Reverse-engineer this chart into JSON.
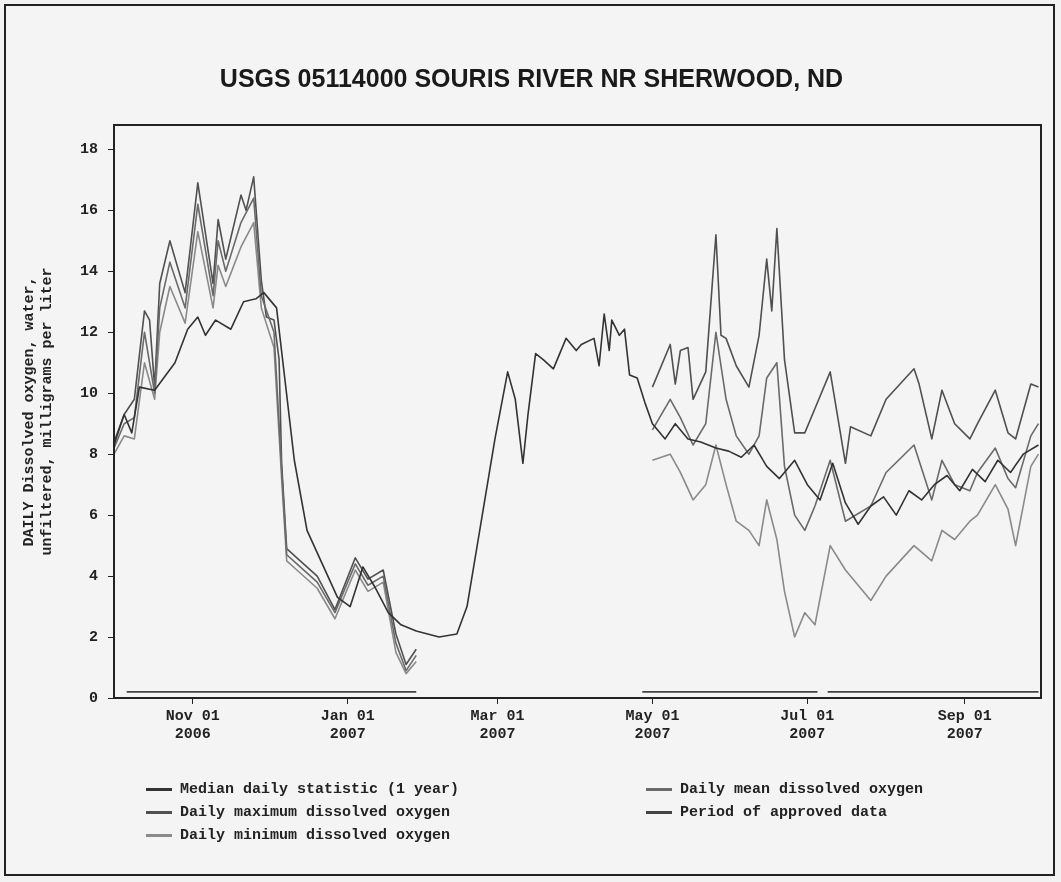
{
  "chart_data": {
    "type": "line",
    "title": "USGS 05114000 SOURIS RIVER NR SHERWOOD, ND",
    "ylabel": "DAILY Dissolved oxygen, water,\nunfiltered, milligrams per liter",
    "xlim": [
      "2006-10-01",
      "2007-10-01"
    ],
    "xticks": [
      {
        "value": "2006-11-01",
        "label": "Nov 01\n2006"
      },
      {
        "value": "2007-01-01",
        "label": "Jan 01\n2007"
      },
      {
        "value": "2007-03-01",
        "label": "Mar 01\n2007"
      },
      {
        "value": "2007-05-01",
        "label": "May 01\n2007"
      },
      {
        "value": "2007-07-01",
        "label": "Jul 01\n2007"
      },
      {
        "value": "2007-09-01",
        "label": "Sep 01\n2007"
      }
    ],
    "ylim": [
      0,
      18.8
    ],
    "yticks": [
      0,
      2,
      4,
      6,
      8,
      10,
      12,
      14,
      16,
      18
    ],
    "grid": false,
    "legend": "bottom",
    "marker": "none",
    "line_style": "solid",
    "series": [
      {
        "name": "Median daily statistic (1 year)",
        "color": "#333333",
        "x": [
          "2006-10-01",
          "2006-10-05",
          "2006-10-08",
          "2006-10-11",
          "2006-10-17",
          "2006-10-25",
          "2006-10-30",
          "2006-11-03",
          "2006-11-06",
          "2006-11-10",
          "2006-11-16",
          "2006-11-21",
          "2006-11-26",
          "2006-11-29",
          "2006-12-04",
          "2006-12-11",
          "2006-12-16",
          "2006-12-22",
          "2006-12-28",
          "2007-01-02",
          "2007-01-07",
          "2007-01-12",
          "2007-01-17",
          "2007-01-22",
          "2007-01-28",
          "2007-02-06",
          "2007-02-13",
          "2007-02-17",
          "2007-02-21",
          "2007-02-26",
          "2007-02-28",
          "2007-03-05",
          "2007-03-08",
          "2007-03-11",
          "2007-03-13",
          "2007-03-16",
          "2007-03-19",
          "2007-03-23",
          "2007-03-28",
          "2007-04-01",
          "2007-04-03",
          "2007-04-08",
          "2007-04-10",
          "2007-04-12",
          "2007-04-14",
          "2007-04-15",
          "2007-04-18",
          "2007-04-20",
          "2007-04-22",
          "2007-04-25",
          "2007-04-28",
          "2007-05-01",
          "2007-05-06",
          "2007-05-10",
          "2007-05-15",
          "2007-05-20",
          "2007-05-26",
          "2007-05-31",
          "2007-06-05",
          "2007-06-10",
          "2007-06-15",
          "2007-06-20",
          "2007-06-26",
          "2007-07-01",
          "2007-07-06",
          "2007-07-11",
          "2007-07-16",
          "2007-07-21",
          "2007-07-26",
          "2007-07-31",
          "2007-08-05",
          "2007-08-10",
          "2007-08-15",
          "2007-08-20",
          "2007-08-25",
          "2007-08-30",
          "2007-09-04",
          "2007-09-09",
          "2007-09-14",
          "2007-09-19",
          "2007-09-24",
          "2007-09-30"
        ],
        "values": [
          8.3,
          9.3,
          8.7,
          10.2,
          10.1,
          11.0,
          12.1,
          12.5,
          11.9,
          12.4,
          12.1,
          13.0,
          13.1,
          13.3,
          12.8,
          7.8,
          5.5,
          4.4,
          3.3,
          3.0,
          4.3,
          3.6,
          2.8,
          2.4,
          2.2,
          2.0,
          2.1,
          3.0,
          5.0,
          7.5,
          8.5,
          10.7,
          9.8,
          7.7,
          9.3,
          11.3,
          11.1,
          10.8,
          11.8,
          11.4,
          11.6,
          11.8,
          10.9,
          12.6,
          11.4,
          12.4,
          11.9,
          12.1,
          10.6,
          10.5,
          9.7,
          9.0,
          8.5,
          9.0,
          8.5,
          8.4,
          8.2,
          8.1,
          7.9,
          8.3,
          7.6,
          7.2,
          7.8,
          7.0,
          6.5,
          7.7,
          6.4,
          5.7,
          6.3,
          6.6,
          6.0,
          6.8,
          6.5,
          7.0,
          7.3,
          6.8,
          7.5,
          7.1,
          7.8,
          7.4,
          8.0,
          8.3
        ]
      },
      {
        "name": "Daily mean dissolved oxygen",
        "color": "#6a6a6a",
        "x": [
          "2006-10-01",
          "2006-10-05",
          "2006-10-09",
          "2006-10-13",
          "2006-10-17",
          "2006-10-19",
          "2006-10-23",
          "2006-10-29",
          "2006-11-03",
          "2006-11-09",
          "2006-11-11",
          "2006-11-14",
          "2006-11-20",
          "2006-11-25",
          "2006-11-28",
          "2006-12-03",
          "2006-12-06",
          "2006-12-08",
          "2006-12-12",
          "2006-12-20",
          "2006-12-27",
          "2007-01-04",
          "2007-01-09",
          "2007-01-15",
          "2007-01-20",
          "2007-01-24",
          "2007-01-28",
          "2007-03-01",
          "2007-05-01",
          "2007-05-08",
          "2007-05-12",
          "2007-05-17",
          "2007-05-22",
          "2007-05-26",
          "2007-05-30",
          "2007-06-03",
          "2007-06-08",
          "2007-06-12",
          "2007-06-15",
          "2007-06-19",
          "2007-06-22",
          "2007-06-26",
          "2007-06-30",
          "2007-07-04",
          "2007-07-10",
          "2007-07-16",
          "2007-07-26",
          "2007-08-01",
          "2007-08-12",
          "2007-08-19",
          "2007-08-23",
          "2007-08-28",
          "2007-09-03",
          "2007-09-06",
          "2007-09-13",
          "2007-09-18",
          "2007-09-21",
          "2007-09-27",
          "2007-09-30"
        ],
        "values": [
          8.2,
          9.0,
          9.2,
          12.0,
          10.0,
          12.8,
          14.3,
          12.8,
          16.2,
          13.2,
          15.0,
          14.0,
          15.6,
          16.4,
          13.2,
          12.0,
          7.5,
          4.7,
          4.4,
          3.8,
          2.8,
          4.4,
          3.7,
          4.0,
          1.8,
          0.9,
          1.4,
          null,
          8.8,
          9.8,
          9.2,
          8.3,
          9.0,
          12.0,
          9.8,
          8.6,
          8.0,
          8.6,
          10.5,
          11.0,
          7.6,
          6.0,
          5.5,
          6.3,
          7.8,
          5.8,
          6.3,
          7.4,
          8.3,
          6.5,
          7.8,
          7.0,
          6.8,
          7.4,
          8.2,
          7.2,
          6.9,
          8.6,
          9.0
        ]
      },
      {
        "name": "Daily maximum dissolved oxygen",
        "color": "#505050",
        "x": [
          "2006-10-01",
          "2006-10-05",
          "2006-10-09",
          "2006-10-13",
          "2006-10-15",
          "2006-10-17",
          "2006-10-19",
          "2006-10-23",
          "2006-10-29",
          "2006-11-03",
          "2006-11-09",
          "2006-11-11",
          "2006-11-14",
          "2006-11-20",
          "2006-11-22",
          "2006-11-25",
          "2006-11-28",
          "2006-11-30",
          "2006-12-03",
          "2006-12-05",
          "2006-12-06",
          "2006-12-08",
          "2006-12-12",
          "2006-12-20",
          "2006-12-27",
          "2007-01-04",
          "2007-01-09",
          "2007-01-15",
          "2007-01-20",
          "2007-01-24",
          "2007-01-28",
          "2007-03-01",
          "2007-05-01",
          "2007-05-08",
          "2007-05-10",
          "2007-05-12",
          "2007-05-15",
          "2007-05-17",
          "2007-05-22",
          "2007-05-26",
          "2007-05-28",
          "2007-05-30",
          "2007-06-03",
          "2007-06-08",
          "2007-06-12",
          "2007-06-15",
          "2007-06-17",
          "2007-06-19",
          "2007-06-22",
          "2007-06-26",
          "2007-06-30",
          "2007-07-04",
          "2007-07-10",
          "2007-07-16",
          "2007-07-18",
          "2007-07-26",
          "2007-08-01",
          "2007-08-12",
          "2007-08-14",
          "2007-08-19",
          "2007-08-23",
          "2007-08-28",
          "2007-09-03",
          "2007-09-06",
          "2007-09-13",
          "2007-09-18",
          "2007-09-21",
          "2007-09-27",
          "2007-09-30"
        ],
        "values": [
          8.4,
          9.3,
          9.8,
          12.7,
          12.4,
          10.2,
          13.6,
          15.0,
          13.3,
          16.9,
          13.6,
          15.7,
          14.4,
          16.5,
          16.0,
          17.1,
          13.7,
          12.5,
          12.4,
          11.1,
          7.7,
          4.9,
          4.6,
          4.0,
          2.9,
          4.6,
          3.9,
          4.2,
          2.1,
          1.1,
          1.6,
          null,
          10.2,
          11.6,
          10.3,
          11.4,
          11.5,
          9.8,
          10.7,
          15.2,
          11.9,
          11.8,
          10.9,
          10.2,
          11.9,
          14.4,
          12.7,
          15.4,
          11.1,
          8.7,
          8.7,
          9.5,
          10.7,
          7.7,
          8.9,
          8.6,
          9.8,
          10.8,
          10.3,
          8.5,
          10.1,
          9.0,
          8.5,
          9.0,
          10.1,
          8.7,
          8.5,
          10.3,
          10.2
        ]
      },
      {
        "name": "Period of approved data",
        "color": "#444444",
        "x": [
          "2006-10-06",
          "2007-01-28",
          "2007-03-01",
          "2007-04-27",
          "2007-07-05",
          "2007-07-07",
          "2007-07-09",
          "2007-09-30"
        ],
        "values": [
          0.2,
          0.2,
          null,
          0.2,
          0.2,
          null,
          0.2,
          0.2
        ]
      },
      {
        "name": "Daily minimum dissolved oxygen",
        "color": "#8a8a8a",
        "x": [
          "2006-10-01",
          "2006-10-05",
          "2006-10-09",
          "2006-10-13",
          "2006-10-17",
          "2006-10-19",
          "2006-10-23",
          "2006-10-29",
          "2006-11-03",
          "2006-11-09",
          "2006-11-11",
          "2006-11-14",
          "2006-11-20",
          "2006-11-25",
          "2006-11-28",
          "2006-12-03",
          "2006-12-06",
          "2006-12-08",
          "2006-12-12",
          "2006-12-20",
          "2006-12-27",
          "2007-01-04",
          "2007-01-09",
          "2007-01-15",
          "2007-01-20",
          "2007-01-24",
          "2007-01-28",
          "2007-03-01",
          "2007-05-01",
          "2007-05-08",
          "2007-05-12",
          "2007-05-17",
          "2007-05-22",
          "2007-05-26",
          "2007-05-30",
          "2007-06-03",
          "2007-06-08",
          "2007-06-12",
          "2007-06-15",
          "2007-06-19",
          "2007-06-22",
          "2007-06-26",
          "2007-06-30",
          "2007-07-04",
          "2007-07-10",
          "2007-07-16",
          "2007-07-26",
          "2007-08-01",
          "2007-08-12",
          "2007-08-19",
          "2007-08-23",
          "2007-08-28",
          "2007-09-03",
          "2007-09-06",
          "2007-09-13",
          "2007-09-18",
          "2007-09-21",
          "2007-09-27",
          "2007-09-30"
        ],
        "values": [
          8.0,
          8.6,
          8.5,
          11.0,
          9.8,
          12.0,
          13.5,
          12.3,
          15.3,
          12.8,
          14.2,
          13.5,
          14.8,
          15.6,
          12.8,
          11.5,
          7.2,
          4.5,
          4.2,
          3.6,
          2.6,
          4.2,
          3.5,
          3.8,
          1.5,
          0.8,
          1.2,
          null,
          7.8,
          8.0,
          7.4,
          6.5,
          7.0,
          8.3,
          7.0,
          5.8,
          5.5,
          5.0,
          6.5,
          5.2,
          3.5,
          2.0,
          2.8,
          2.4,
          5.0,
          4.2,
          3.2,
          4.0,
          5.0,
          4.5,
          5.5,
          5.2,
          5.8,
          6.0,
          7.0,
          6.2,
          5.0,
          7.6,
          8.0
        ]
      }
    ]
  }
}
